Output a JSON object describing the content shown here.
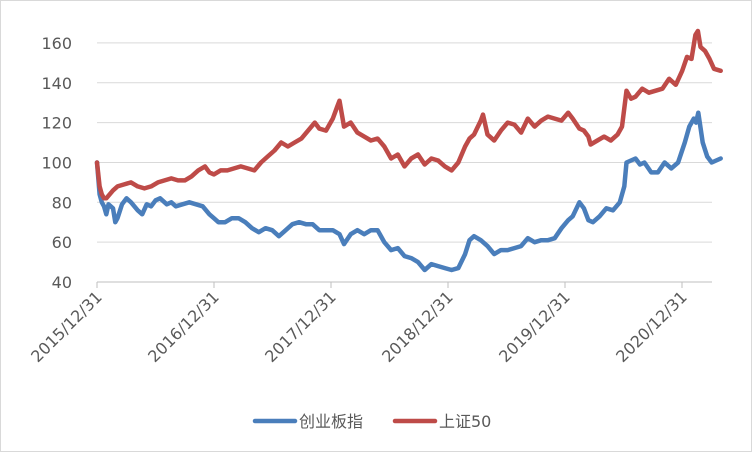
{
  "chart_data": {
    "type": "line",
    "title": "",
    "xlabel": "",
    "ylabel": "",
    "ylim": [
      40,
      170
    ],
    "y_ticks": [
      40,
      60,
      80,
      100,
      120,
      140,
      160
    ],
    "x_tick_labels": [
      "2015/12/31",
      "2016/12/31",
      "2017/12/31",
      "2018/12/31",
      "2019/12/31",
      "2020/12/31"
    ],
    "x_range": [
      "2015-12-31",
      "2021-04-30"
    ],
    "grid": "horizontal",
    "legend_position": "bottom",
    "series": [
      {
        "name": "创业板指",
        "color": "#4a7ebb",
        "points": [
          [
            "2015-12-31",
            100
          ],
          [
            "2016-01-08",
            84
          ],
          [
            "2016-01-15",
            80
          ],
          [
            "2016-01-22",
            78
          ],
          [
            "2016-01-29",
            74
          ],
          [
            "2016-02-05",
            79
          ],
          [
            "2016-02-19",
            77
          ],
          [
            "2016-02-26",
            70
          ],
          [
            "2016-03-04",
            72
          ],
          [
            "2016-03-18",
            79
          ],
          [
            "2016-04-01",
            82
          ],
          [
            "2016-04-15",
            80
          ],
          [
            "2016-05-06",
            76
          ],
          [
            "2016-05-20",
            74
          ],
          [
            "2016-06-03",
            79
          ],
          [
            "2016-06-17",
            78
          ],
          [
            "2016-07-01",
            81
          ],
          [
            "2016-07-15",
            82
          ],
          [
            "2016-08-05",
            79
          ],
          [
            "2016-08-19",
            80
          ],
          [
            "2016-09-02",
            78
          ],
          [
            "2016-09-23",
            79
          ],
          [
            "2016-10-14",
            80
          ],
          [
            "2016-11-04",
            79
          ],
          [
            "2016-11-25",
            78
          ],
          [
            "2016-12-16",
            74
          ],
          [
            "2016-12-30",
            72
          ],
          [
            "2017-01-13",
            70
          ],
          [
            "2017-02-03",
            70
          ],
          [
            "2017-02-24",
            72
          ],
          [
            "2017-03-17",
            72
          ],
          [
            "2017-04-07",
            70
          ],
          [
            "2017-04-28",
            67
          ],
          [
            "2017-05-19",
            65
          ],
          [
            "2017-06-09",
            67
          ],
          [
            "2017-06-30",
            66
          ],
          [
            "2017-07-21",
            63
          ],
          [
            "2017-08-11",
            66
          ],
          [
            "2017-09-01",
            69
          ],
          [
            "2017-09-22",
            70
          ],
          [
            "2017-10-13",
            69
          ],
          [
            "2017-11-03",
            69
          ],
          [
            "2017-11-24",
            66
          ],
          [
            "2017-12-15",
            66
          ],
          [
            "2018-01-05",
            66
          ],
          [
            "2018-01-26",
            64
          ],
          [
            "2018-02-09",
            59
          ],
          [
            "2018-03-02",
            64
          ],
          [
            "2018-03-23",
            66
          ],
          [
            "2018-04-13",
            64
          ],
          [
            "2018-05-04",
            66
          ],
          [
            "2018-05-25",
            66
          ],
          [
            "2018-06-15",
            60
          ],
          [
            "2018-07-06",
            56
          ],
          [
            "2018-07-27",
            57
          ],
          [
            "2018-08-17",
            53
          ],
          [
            "2018-09-07",
            52
          ],
          [
            "2018-09-28",
            50
          ],
          [
            "2018-10-19",
            46
          ],
          [
            "2018-11-09",
            49
          ],
          [
            "2018-11-30",
            48
          ],
          [
            "2018-12-21",
            47
          ],
          [
            "2019-01-11",
            46
          ],
          [
            "2019-02-01",
            47
          ],
          [
            "2019-02-22",
            54
          ],
          [
            "2019-03-08",
            61
          ],
          [
            "2019-03-22",
            63
          ],
          [
            "2019-04-12",
            61
          ],
          [
            "2019-05-03",
            58
          ],
          [
            "2019-05-24",
            54
          ],
          [
            "2019-06-14",
            56
          ],
          [
            "2019-07-05",
            56
          ],
          [
            "2019-07-26",
            57
          ],
          [
            "2019-08-16",
            58
          ],
          [
            "2019-09-06",
            62
          ],
          [
            "2019-09-27",
            60
          ],
          [
            "2019-10-18",
            61
          ],
          [
            "2019-11-08",
            61
          ],
          [
            "2019-11-29",
            62
          ],
          [
            "2019-12-20",
            67
          ],
          [
            "2020-01-10",
            71
          ],
          [
            "2020-01-24",
            73
          ],
          [
            "2020-02-14",
            80
          ],
          [
            "2020-02-28",
            77
          ],
          [
            "2020-03-13",
            71
          ],
          [
            "2020-03-27",
            70
          ],
          [
            "2020-04-17",
            73
          ],
          [
            "2020-05-08",
            77
          ],
          [
            "2020-05-29",
            76
          ],
          [
            "2020-06-19",
            80
          ],
          [
            "2020-07-03",
            88
          ],
          [
            "2020-07-10",
            100
          ],
          [
            "2020-07-24",
            101
          ],
          [
            "2020-08-07",
            102
          ],
          [
            "2020-08-21",
            99
          ],
          [
            "2020-09-04",
            100
          ],
          [
            "2020-09-25",
            95
          ],
          [
            "2020-10-16",
            95
          ],
          [
            "2020-11-06",
            100
          ],
          [
            "2020-11-27",
            97
          ],
          [
            "2020-12-18",
            100
          ],
          [
            "2021-01-08",
            110
          ],
          [
            "2021-01-22",
            118
          ],
          [
            "2021-02-05",
            122
          ],
          [
            "2021-02-12",
            120
          ],
          [
            "2021-02-19",
            125
          ],
          [
            "2021-03-05",
            110
          ],
          [
            "2021-03-19",
            103
          ],
          [
            "2021-04-02",
            100
          ],
          [
            "2021-04-16",
            101
          ],
          [
            "2021-04-30",
            102
          ]
        ]
      },
      {
        "name": "上证50",
        "color": "#be4b48",
        "points": [
          [
            "2015-12-31",
            100
          ],
          [
            "2016-01-08",
            88
          ],
          [
            "2016-01-15",
            84
          ],
          [
            "2016-01-22",
            82
          ],
          [
            "2016-01-29",
            82
          ],
          [
            "2016-02-19",
            86
          ],
          [
            "2016-03-04",
            88
          ],
          [
            "2016-03-25",
            89
          ],
          [
            "2016-04-15",
            90
          ],
          [
            "2016-05-06",
            88
          ],
          [
            "2016-05-27",
            87
          ],
          [
            "2016-06-17",
            88
          ],
          [
            "2016-07-08",
            90
          ],
          [
            "2016-07-29",
            91
          ],
          [
            "2016-08-19",
            92
          ],
          [
            "2016-09-09",
            91
          ],
          [
            "2016-09-30",
            91
          ],
          [
            "2016-10-21",
            93
          ],
          [
            "2016-11-11",
            96
          ],
          [
            "2016-12-02",
            98
          ],
          [
            "2016-12-16",
            95
          ],
          [
            "2016-12-30",
            94
          ],
          [
            "2017-01-20",
            96
          ],
          [
            "2017-02-10",
            96
          ],
          [
            "2017-03-03",
            97
          ],
          [
            "2017-03-24",
            98
          ],
          [
            "2017-04-14",
            97
          ],
          [
            "2017-05-05",
            96
          ],
          [
            "2017-05-26",
            100
          ],
          [
            "2017-06-16",
            103
          ],
          [
            "2017-07-07",
            106
          ],
          [
            "2017-07-28",
            110
          ],
          [
            "2017-08-18",
            108
          ],
          [
            "2017-09-08",
            110
          ],
          [
            "2017-09-29",
            112
          ],
          [
            "2017-10-20",
            116
          ],
          [
            "2017-11-10",
            120
          ],
          [
            "2017-11-24",
            117
          ],
          [
            "2017-12-15",
            116
          ],
          [
            "2018-01-05",
            122
          ],
          [
            "2018-01-19",
            128
          ],
          [
            "2018-01-26",
            131
          ],
          [
            "2018-02-09",
            118
          ],
          [
            "2018-03-02",
            120
          ],
          [
            "2018-03-23",
            115
          ],
          [
            "2018-04-13",
            113
          ],
          [
            "2018-05-04",
            111
          ],
          [
            "2018-05-25",
            112
          ],
          [
            "2018-06-15",
            108
          ],
          [
            "2018-07-06",
            102
          ],
          [
            "2018-07-27",
            104
          ],
          [
            "2018-08-17",
            98
          ],
          [
            "2018-09-07",
            102
          ],
          [
            "2018-09-28",
            104
          ],
          [
            "2018-10-19",
            99
          ],
          [
            "2018-11-09",
            102
          ],
          [
            "2018-11-30",
            101
          ],
          [
            "2018-12-21",
            98
          ],
          [
            "2019-01-11",
            96
          ],
          [
            "2019-02-01",
            100
          ],
          [
            "2019-02-22",
            108
          ],
          [
            "2019-03-08",
            112
          ],
          [
            "2019-03-22",
            114
          ],
          [
            "2019-04-12",
            121
          ],
          [
            "2019-04-19",
            124
          ],
          [
            "2019-05-03",
            114
          ],
          [
            "2019-05-24",
            111
          ],
          [
            "2019-06-14",
            116
          ],
          [
            "2019-07-05",
            120
          ],
          [
            "2019-07-26",
            119
          ],
          [
            "2019-08-16",
            115
          ],
          [
            "2019-09-06",
            122
          ],
          [
            "2019-09-27",
            118
          ],
          [
            "2019-10-18",
            121
          ],
          [
            "2019-11-08",
            123
          ],
          [
            "2019-11-29",
            122
          ],
          [
            "2019-12-20",
            121
          ],
          [
            "2020-01-10",
            125
          ],
          [
            "2020-01-24",
            122
          ],
          [
            "2020-02-14",
            117
          ],
          [
            "2020-02-28",
            116
          ],
          [
            "2020-03-13",
            113
          ],
          [
            "2020-03-20",
            109
          ],
          [
            "2020-04-10",
            111
          ],
          [
            "2020-05-01",
            113
          ],
          [
            "2020-05-22",
            111
          ],
          [
            "2020-06-12",
            114
          ],
          [
            "2020-06-26",
            118
          ],
          [
            "2020-07-10",
            136
          ],
          [
            "2020-07-24",
            132
          ],
          [
            "2020-08-07",
            133
          ],
          [
            "2020-08-28",
            137
          ],
          [
            "2020-09-18",
            135
          ],
          [
            "2020-10-09",
            136
          ],
          [
            "2020-10-30",
            137
          ],
          [
            "2020-11-20",
            142
          ],
          [
            "2020-12-11",
            139
          ],
          [
            "2020-12-31",
            146
          ],
          [
            "2021-01-15",
            153
          ],
          [
            "2021-01-29",
            152
          ],
          [
            "2021-02-10",
            164
          ],
          [
            "2021-02-18",
            166
          ],
          [
            "2021-02-26",
            158
          ],
          [
            "2021-03-12",
            156
          ],
          [
            "2021-03-26",
            152
          ],
          [
            "2021-04-09",
            147
          ],
          [
            "2021-04-30",
            146
          ]
        ]
      }
    ]
  }
}
